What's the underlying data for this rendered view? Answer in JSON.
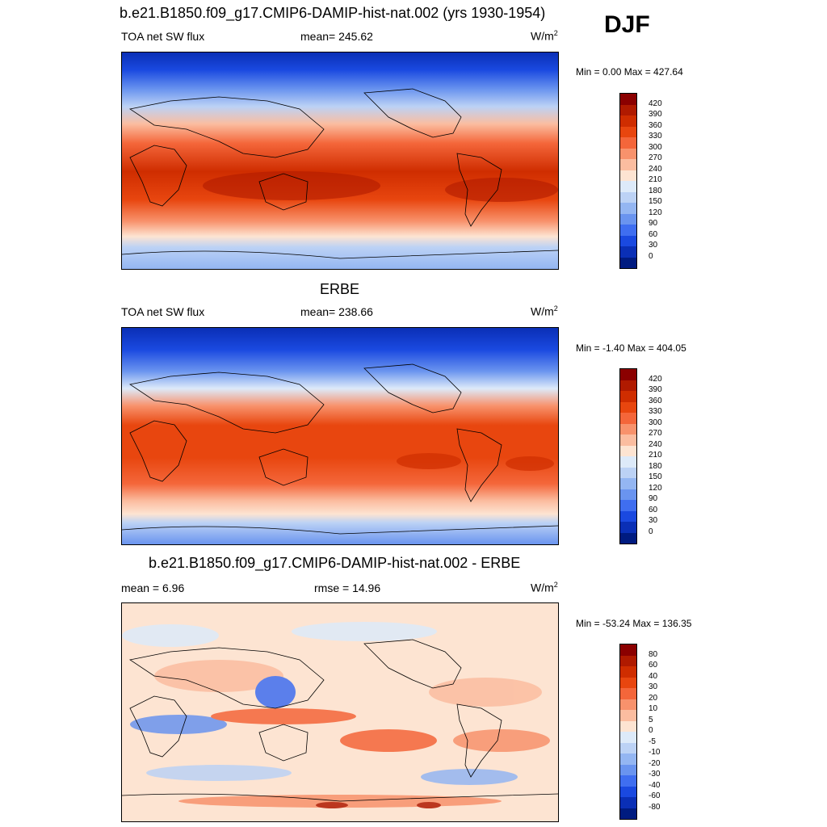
{
  "season": "DJF",
  "unit": "W/m",
  "unit_sup": "2",
  "panels": [
    {
      "title": "b.e21.B1850.f09_g17.CMIP6-DAMIP-hist-nat.002 (yrs 1930-1954)",
      "left_label": "TOA net SW flux",
      "center_label": "mean= 245.62",
      "minmax": "Min =   0.00 Max = 427.64"
    },
    {
      "title": "ERBE",
      "left_label": "TOA net SW flux",
      "center_label": "mean= 238.66",
      "minmax": "Min =  -1.40 Max = 404.05"
    },
    {
      "title": "b.e21.B1850.f09_g17.CMIP6-DAMIP-hist-nat.002 - ERBE",
      "left_label": "mean =   6.96",
      "center_label": "rmse =  14.96",
      "minmax": "Min = -53.24 Max = 136.35"
    }
  ],
  "colorbar_flux": {
    "labels": [
      "420",
      "390",
      "360",
      "330",
      "300",
      "270",
      "240",
      "210",
      "180",
      "150",
      "120",
      "90",
      "60",
      "30",
      "0"
    ],
    "colors": [
      "#8b0000",
      "#b01a00",
      "#cf2d00",
      "#e8460f",
      "#f4663a",
      "#f8926c",
      "#fbbda0",
      "#fde4d2",
      "#ddeaf9",
      "#bcd2f5",
      "#94b6f2",
      "#6a94ef",
      "#3f6ef0",
      "#1a49e0",
      "#0a2fb6",
      "#001b80"
    ]
  },
  "colorbar_diff": {
    "labels": [
      "80",
      "60",
      "40",
      "30",
      "20",
      "10",
      "5",
      "0",
      "-5",
      "-10",
      "-20",
      "-30",
      "-40",
      "-60",
      "-80"
    ],
    "colors": [
      "#8b0000",
      "#b01a00",
      "#cf2d00",
      "#e8460f",
      "#f4663a",
      "#f8926c",
      "#fbbda0",
      "#fde4d2",
      "#ddeaf9",
      "#bcd2f5",
      "#94b6f2",
      "#6a94ef",
      "#3f6ef0",
      "#1a49e0",
      "#0a2fb6",
      "#001b80"
    ]
  }
}
